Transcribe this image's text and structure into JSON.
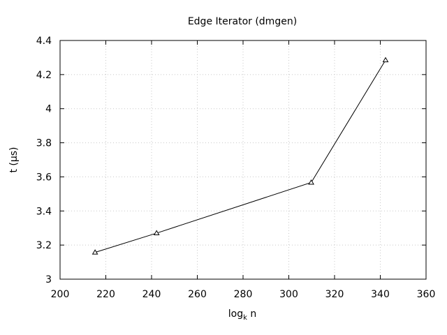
{
  "chart_data": {
    "type": "line",
    "title": "Edge Iterator (dmgen)",
    "xlabel_base": "log",
    "xlabel_sub": "k",
    "xlabel_tail": " n",
    "ylabel": "t (µs)",
    "xlim": [
      200,
      360
    ],
    "ylim": [
      3,
      4.4
    ],
    "xticks": [
      200,
      220,
      240,
      260,
      280,
      300,
      320,
      340,
      360
    ],
    "yticks": [
      3,
      3.2,
      3.4,
      3.6,
      3.8,
      4,
      4.2,
      4.4
    ],
    "xtick_labels": [
      "200",
      "220",
      "240",
      "260",
      "280",
      "300",
      "320",
      "340",
      "360"
    ],
    "ytick_labels": [
      "3",
      "3.2",
      "3.4",
      "3.6",
      "3.8",
      "4",
      "4.2",
      "4.4"
    ],
    "grid": true,
    "series": [
      {
        "name": "Edge Iterator (dmgen)",
        "marker": "triangle",
        "x": [
          215.3,
          242.2,
          309.8,
          342.3
        ],
        "y": [
          3.157,
          3.27,
          3.567,
          4.285
        ]
      }
    ]
  }
}
